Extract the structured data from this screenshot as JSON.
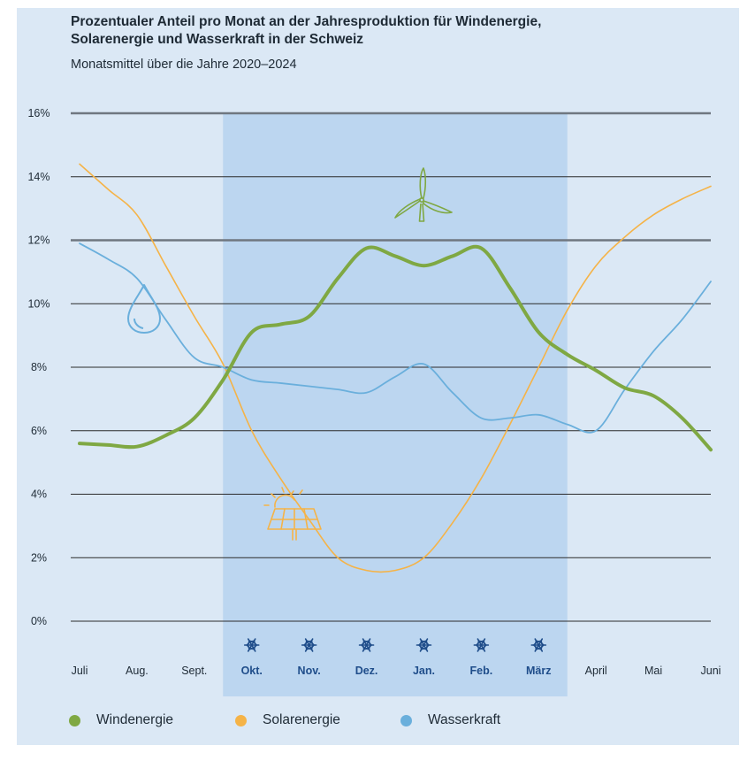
{
  "header": {
    "title_line1": "Prozentualer Anteil pro Monat an der Jahresproduktion für Windenergie,",
    "title_line2": "Solarenergie und Wasserkraft in der Schweiz",
    "subtitle": "Monatsmittel über die Jahre 2020–2024"
  },
  "colors": {
    "wind": "#7fa843",
    "solar": "#f5b347",
    "hydro": "#6aafdc",
    "winter_band": "#bcd6f0",
    "panel": "#dbe8f5",
    "winter_label": "#1f4d8a"
  },
  "icons": {
    "wind": "wind-turbine-icon",
    "solar": "solar-panel-icon",
    "hydro": "water-drop-icon",
    "winter": "snowflake-icon"
  },
  "chart_data": {
    "type": "line",
    "title": "Prozentualer Anteil pro Monat an der Jahresproduktion für Windenergie, Solarenergie und Wasserkraft in der Schweiz",
    "subtitle": "Monatsmittel über die Jahre 2020–2024",
    "categories": [
      "Juli",
      "Aug.",
      "Sept.",
      "Okt.",
      "Nov.",
      "Dez.",
      "Jan.",
      "Feb.",
      "März",
      "April",
      "Mai",
      "Juni"
    ],
    "winter_months": [
      "Okt.",
      "Nov.",
      "Dez.",
      "Jan.",
      "Feb.",
      "März"
    ],
    "ylim": [
      0,
      16
    ],
    "yticks": [
      0,
      2,
      4,
      6,
      8,
      10,
      12,
      14,
      16
    ],
    "ytick_labels": [
      "0%",
      "2%",
      "4%",
      "6%",
      "8%",
      "10%",
      "12%",
      "14%",
      "16%"
    ],
    "xlabel": "",
    "ylabel": "",
    "grid": true,
    "legend_position": "bottom",
    "series": [
      {
        "name": "Windenergie",
        "key": "wind",
        "x": [
          0,
          0.5,
          1,
          1.5,
          2,
          2.5,
          3,
          3.5,
          4,
          4.5,
          5,
          5.5,
          6,
          6.5,
          7,
          7.5,
          8,
          8.5,
          9,
          9.5,
          10,
          10.5,
          11
        ],
        "values": [
          5.6,
          5.55,
          5.5,
          5.85,
          6.4,
          7.6,
          9.1,
          9.35,
          9.6,
          10.8,
          11.75,
          11.5,
          11.2,
          11.5,
          11.75,
          10.5,
          9.1,
          8.4,
          7.9,
          7.35,
          7.1,
          6.4,
          5.4
        ]
      },
      {
        "name": "Solarenergie",
        "key": "solar",
        "x": [
          0,
          0.5,
          1,
          1.5,
          2,
          2.5,
          3,
          3.5,
          4,
          4.5,
          5,
          5.5,
          6,
          6.5,
          7,
          7.5,
          8,
          8.5,
          9,
          9.5,
          10,
          10.5,
          11
        ],
        "values": [
          14.4,
          13.6,
          12.8,
          11.2,
          9.6,
          8.1,
          6.0,
          4.5,
          3.2,
          2.0,
          1.6,
          1.6,
          2.0,
          3.1,
          4.5,
          6.2,
          8.0,
          9.8,
          11.2,
          12.1,
          12.8,
          13.3,
          13.7
        ]
      },
      {
        "name": "Wasserkraft",
        "key": "hydro",
        "x": [
          0,
          0.5,
          1,
          1.5,
          2,
          2.5,
          3,
          3.5,
          4,
          4.5,
          5,
          5.5,
          6,
          6.5,
          7,
          7.5,
          8,
          8.5,
          9,
          9.5,
          10,
          10.5,
          11
        ],
        "values": [
          11.9,
          11.4,
          10.8,
          9.5,
          8.3,
          8.0,
          7.6,
          7.5,
          7.4,
          7.3,
          7.2,
          7.7,
          8.1,
          7.2,
          6.4,
          6.4,
          6.5,
          6.2,
          6.0,
          7.3,
          8.5,
          9.5,
          10.7
        ]
      }
    ]
  }
}
